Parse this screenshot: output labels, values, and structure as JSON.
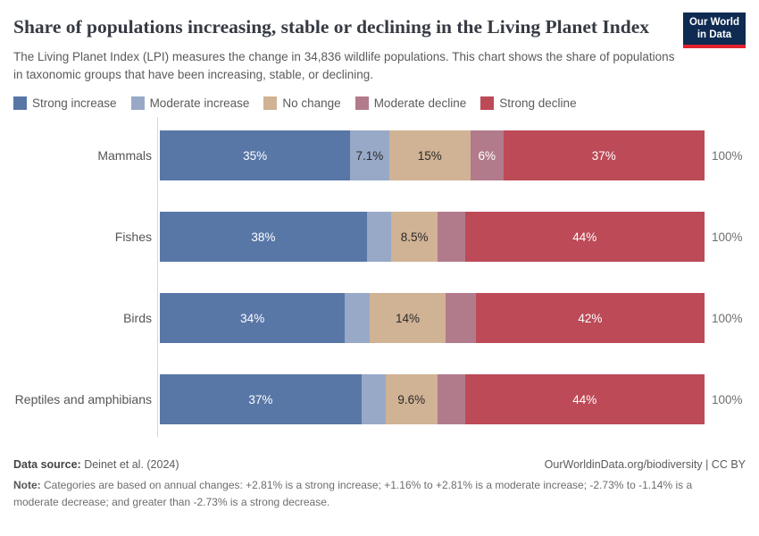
{
  "logo": {
    "line1": "Our World",
    "line2": "in Data"
  },
  "brand": {
    "logo_bg": "#0f2b52",
    "logo_accent": "#e0232e"
  },
  "header": {
    "title": "Share of populations increasing, stable or declining in the Living Planet Index",
    "subtitle": "The Living Planet Index (LPI) measures the change in 34,836 wildlife populations. This chart shows the share of populations in taxonomic groups that have been increasing, stable, or declining."
  },
  "legend": {
    "items": [
      {
        "label": "Strong increase",
        "color": "#5877a7"
      },
      {
        "label": "Moderate increase",
        "color": "#98a9c7"
      },
      {
        "label": "No change",
        "color": "#d0b294"
      },
      {
        "label": "Moderate decline",
        "color": "#b27b8c"
      },
      {
        "label": "Strong decline",
        "color": "#bd4a57"
      }
    ]
  },
  "chart_data": {
    "type": "bar",
    "stacked": true,
    "orientation": "horizontal",
    "xlim": [
      0,
      100
    ],
    "grid": false,
    "total_label": "100%",
    "categories": [
      "Mammals",
      "Fishes",
      "Birds",
      "Reptiles and amphibians"
    ],
    "series": [
      {
        "name": "Strong increase",
        "color": "#5877a7",
        "label_color": "#ffffff",
        "values": [
          35,
          38,
          34,
          37
        ],
        "labels": [
          "35%",
          "38%",
          "34%",
          "37%"
        ]
      },
      {
        "name": "Moderate increase",
        "color": "#98a9c7",
        "label_color": "#2a2a2a",
        "values": [
          7.1,
          4.5,
          4.5,
          4.4
        ],
        "labels": [
          "7.1%",
          "",
          "",
          ""
        ]
      },
      {
        "name": "No change",
        "color": "#d0b294",
        "label_color": "#2a2a2a",
        "values": [
          15,
          8.5,
          14,
          9.6
        ],
        "labels": [
          "15%",
          "8.5%",
          "14%",
          "9.6%"
        ]
      },
      {
        "name": "Moderate decline",
        "color": "#b27b8c",
        "label_color": "#ffffff",
        "values": [
          6,
          5,
          5.5,
          5
        ],
        "labels": [
          "6%",
          "",
          "",
          ""
        ]
      },
      {
        "name": "Strong decline",
        "color": "#bd4a57",
        "label_color": "#ffffff",
        "values": [
          37,
          44,
          42,
          44
        ],
        "labels": [
          "37%",
          "44%",
          "42%",
          "44%"
        ]
      }
    ]
  },
  "footer": {
    "source_label": "Data source:",
    "source_value": " Deinet et al. (2024)",
    "attribution": "OurWorldinData.org/biodiversity | CC BY",
    "note_label": "Note:",
    "note_value": " Categories are based on annual changes: +2.81% is a strong increase; +1.16% to +2.81% is a moderate increase; -2.73% to -1.14% is a moderate decrease; and greater than -2.73% is a strong decrease."
  }
}
